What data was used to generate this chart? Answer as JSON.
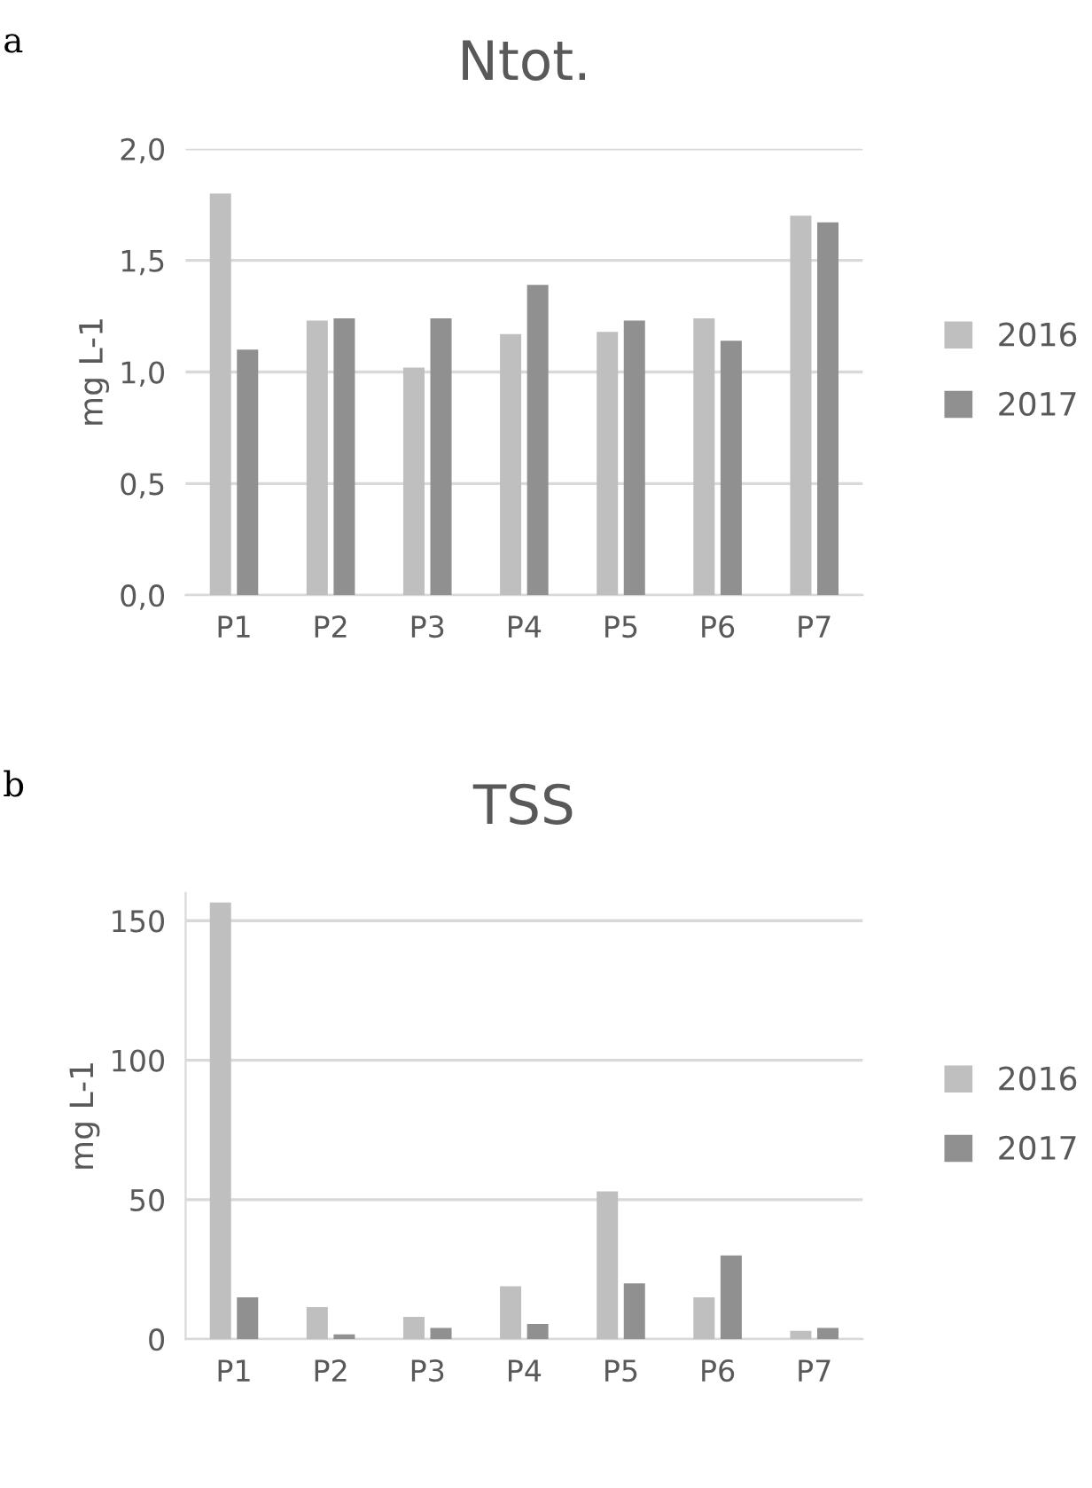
{
  "chart_data": [
    {
      "type": "bar",
      "title": "Ntot.",
      "ylabel": "mg L-1",
      "annotations": [
        "a"
      ],
      "categories": [
        "P1",
        "P2",
        "P3",
        "P4",
        "P5",
        "P6",
        "P7"
      ],
      "series": [
        {
          "name": "2016",
          "color": "#bfbfbf",
          "values": [
            1.8,
            1.23,
            1.02,
            1.17,
            1.18,
            1.24,
            1.7
          ]
        },
        {
          "name": "2017",
          "color": "#909090",
          "values": [
            1.1,
            1.24,
            1.24,
            1.39,
            1.23,
            1.14,
            1.67
          ]
        }
      ],
      "ylim": [
        0,
        2
      ],
      "yticks": [
        {
          "value": 0,
          "label": "0,0"
        },
        {
          "value": 0.5,
          "label": "0,5"
        },
        {
          "value": 1,
          "label": "1,0"
        },
        {
          "value": 1.5,
          "label": "1,5"
        },
        {
          "value": 2,
          "label": "2,0"
        }
      ],
      "grid": "y",
      "legend": "right"
    },
    {
      "type": "bar",
      "title": "TSS",
      "ylabel": "mg L-1",
      "annotations": [
        "b"
      ],
      "categories": [
        "P1",
        "P2",
        "P3",
        "P4",
        "P5",
        "P6",
        "P7"
      ],
      "series": [
        {
          "name": "2016",
          "color": "#bfbfbf",
          "values": [
            156.5,
            11.5,
            8,
            19,
            53,
            15,
            3
          ]
        },
        {
          "name": "2017",
          "color": "#909090",
          "values": [
            15,
            1.7,
            4,
            5.5,
            20,
            30,
            4
          ]
        }
      ],
      "ylim": [
        0,
        160
      ],
      "yticks": [
        0,
        50,
        100,
        150
      ],
      "grid": "y",
      "legend": "right"
    }
  ]
}
